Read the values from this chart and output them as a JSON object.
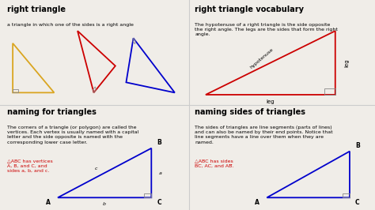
{
  "bg_color": "#f0ede8",
  "title_fontsize": 7,
  "body_fontsize": 4.5,
  "small_fontsize": 4.0,
  "quadrant_titles": [
    "right triangle",
    "right triangle vocabulary",
    "naming for triangles",
    "naming sides of triangles"
  ],
  "quadrant_bodies": [
    "a triangle in which one of the sides is a right angle",
    "The hypotenuse of a right triangle is the side opposite\nthe right angle. The legs are the sides that form the right\nangle.",
    "The corners of a triangle (or polygon) are called the\nvertices. Each vertex is usually named with a capital\nletter and the side opposite is named with the\ncorresponding lower case letter.",
    "The sides of triangles are line segments (parts of lines)\nand can also be named by their end points. Notice that\nline segments have a line over them when they are\nnamed."
  ],
  "divider_color": "#cccccc",
  "yellow": "#DAA520",
  "red": "#cc0000",
  "blue": "#0000cc",
  "gray": "#888888"
}
